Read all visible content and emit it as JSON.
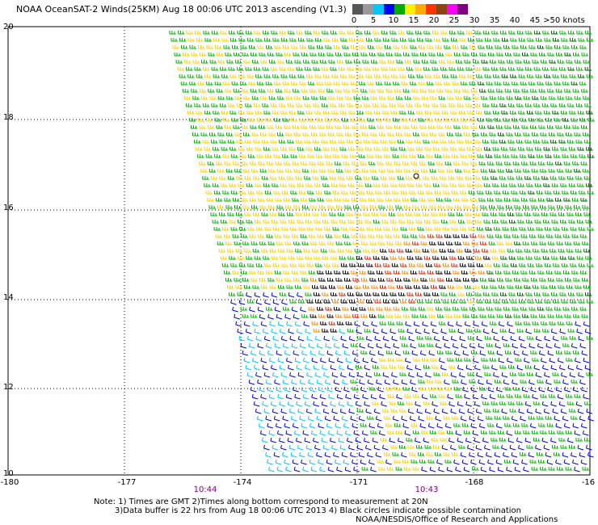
{
  "title": "NOAA OceanSAT-2 Winds(25KM) Aug 18 00:06 UTC 2013 ascending (V1.3)",
  "scale": {
    "labels": [
      "0",
      "5",
      "10",
      "15",
      "20",
      "25",
      "30",
      "35",
      "40",
      "45",
      ">50 knots"
    ],
    "colors": [
      "#555555",
      "#999999",
      "#00c8ff",
      "#0000ff",
      "#00aa00",
      "#fff000",
      "#ffaa00",
      "#ff3300",
      "#8b4513",
      "#ff00ff",
      "#800080"
    ]
  },
  "axes": {
    "lat_labels": [
      "20",
      "18",
      "16",
      "14",
      "12",
      "10"
    ],
    "lon_labels": [
      "-180",
      "-177",
      "-174",
      "-171",
      "-168",
      "-16"
    ]
  },
  "time_labels": [
    "10:44",
    "10:43"
  ],
  "notes": {
    "line1": "Note: 1) Times are GMT 2)Times along bottom correspond to measurement at 20N",
    "line2": "3)Data buffer is 22 hrs from Aug 18 00:06 UTC 2013 4) Black circles indicate possible contamination",
    "line3": "NOAA/NESDIS/Office of Research and Applications"
  },
  "map_colors": {
    "green": "#00b400",
    "yellow": "#ffd000",
    "dark_green": "#006400",
    "blue": "#0000dd",
    "cyan": "#00c8ff",
    "black": "#000000",
    "red": "#e02000",
    "orange": "#ff8800",
    "grid": "#000000"
  }
}
